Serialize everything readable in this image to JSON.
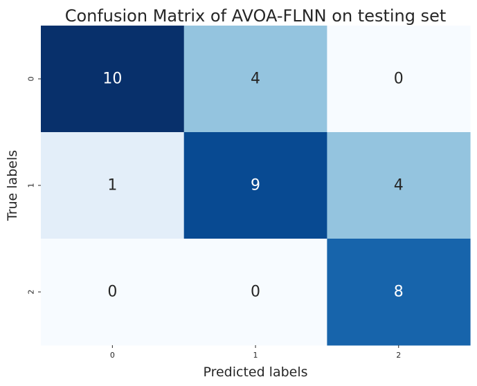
{
  "chart_data": {
    "type": "heatmap",
    "title": "Confusion Matrix of AVOA-FLNN on testing set",
    "xlabel": "Predicted labels",
    "ylabel": "True labels",
    "x_categories": [
      "0",
      "1",
      "2"
    ],
    "y_categories": [
      "0",
      "1",
      "2"
    ],
    "values": [
      [
        10,
        4,
        0
      ],
      [
        1,
        9,
        4
      ],
      [
        0,
        0,
        8
      ]
    ],
    "colormap": "Blues",
    "value_range": [
      0,
      10
    ],
    "colorbar": false,
    "grid": false
  }
}
